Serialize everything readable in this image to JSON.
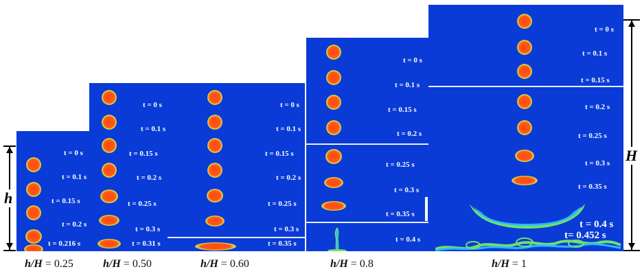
{
  "colors": {
    "background": "#0a3bd6",
    "droplet_core": "#ff4a12",
    "rim": "#6fe06a"
  },
  "panels": {
    "p025": {
      "labels": [
        "t = 0 s",
        "t = 0.1 s",
        "t = 0.15 s",
        "t = 0.2 s",
        "t = 0.216 s"
      ]
    },
    "p050": {
      "labels": [
        "t = 0 s",
        "t = 0.1 s",
        "t = 0.15 s",
        "t = 0.2 s",
        "t = 0.25 s",
        "t = 0.3 s",
        "t = 0.31 s"
      ]
    },
    "p060": {
      "labels": [
        "t = 0 s",
        "t = 0.1 s",
        "t = 0.15 s",
        "t = 0.2 s",
        "t = 0.25 s",
        "t = 0.3 s",
        "t = 0.35 s"
      ]
    },
    "p080": {
      "labels": [
        "t = 0 s",
        "t = 0.1 s",
        "t = 0.15 s",
        "t = 0.2 s",
        "t = 0.25 s",
        "t = 0.3 s",
        "t = 0.35 s",
        "t = 0.4 s"
      ]
    },
    "p100": {
      "labels": [
        "t = 0 s",
        "t = 0.1 s",
        "t = 0.15 s",
        "t = 0.2 s",
        "t = 0.25 s",
        "t = 0.3 s",
        "t = 0.35 s",
        "t = 0.4 s",
        "t= 0.452 s"
      ]
    }
  },
  "captions": {
    "c025": {
      "var": "h/H",
      "value": "= 0.25"
    },
    "c050": {
      "var": "h/H",
      "value": "= 0.50"
    },
    "c060": {
      "var": "h/H",
      "value": "= 0.60"
    },
    "c080": {
      "var": "h/H",
      "value": "= 0.8"
    },
    "c100": {
      "var": "h/H",
      "value": "= 1"
    }
  },
  "dimensions": {
    "small": "h",
    "large": "H"
  }
}
